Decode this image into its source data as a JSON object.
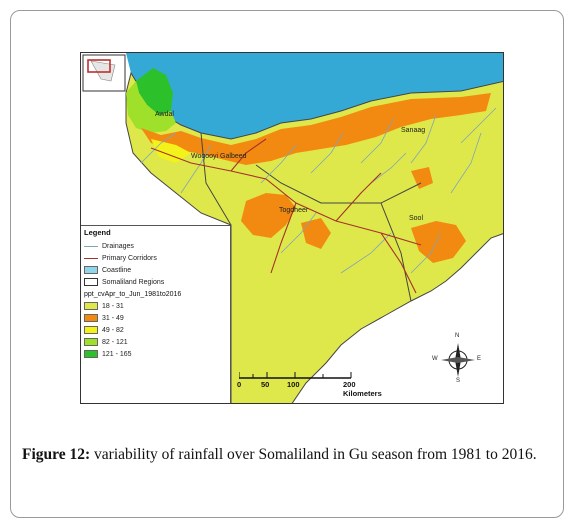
{
  "figure": {
    "caption_label": "Figure 12:",
    "caption_text": "variability of rainfall over Somaliland in Gu season from 1981 to 2016."
  },
  "map": {
    "towns": [
      "Awdal",
      "Woqooyi Galbeed",
      "Sanaag",
      "Togdheer",
      "Sool"
    ],
    "legend": {
      "title": "Legend",
      "items": [
        {
          "label": "Drainages",
          "color": "#7fa6b8",
          "kind": "line"
        },
        {
          "label": "Primary Corridors",
          "color": "#a5312b",
          "kind": "line"
        },
        {
          "label": "Coastline",
          "color": "#8fd6ec",
          "kind": "fill"
        },
        {
          "label": "Somaliland Regions",
          "color": "#ffffff",
          "kind": "outline"
        }
      ],
      "field_name": "ppt_cvApr_to_Jun_1981to2016",
      "classes": [
        {
          "label": "18 - 31",
          "color": "#dfe84a"
        },
        {
          "label": "31 - 49",
          "color": "#f28a12"
        },
        {
          "label": "49 - 82",
          "color": "#f3f21b"
        },
        {
          "label": "82 - 121",
          "color": "#9ee02a"
        },
        {
          "label": "121 - 165",
          "color": "#2cc12b"
        }
      ]
    },
    "scale": {
      "ticks": [
        "0",
        "50",
        "100",
        "200 Kilometers"
      ]
    },
    "compass": {
      "n": "N",
      "s": "S",
      "e": "E",
      "w": "W"
    },
    "colors": {
      "sea": "#35a9d6",
      "background_land": "#dfe84a",
      "border": "#3a3a3a"
    }
  }
}
